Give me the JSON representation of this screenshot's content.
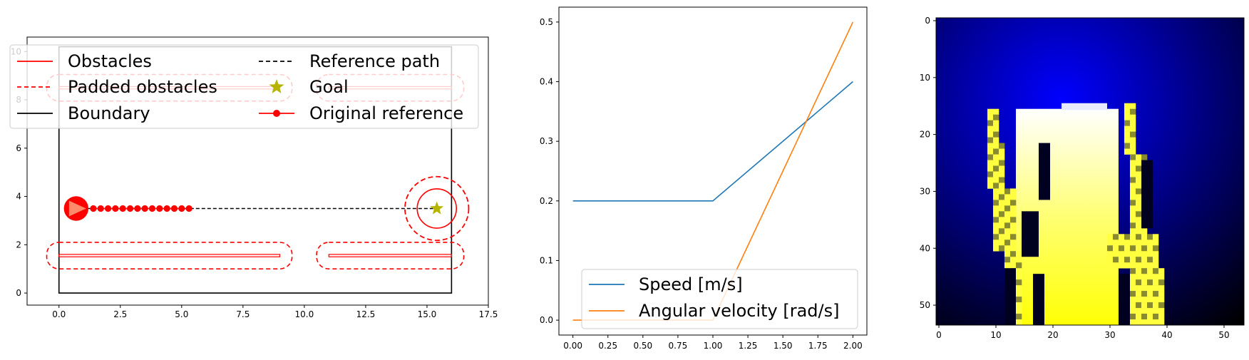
{
  "chart_data": [
    {
      "type": "line",
      "title": "",
      "xlabel": "",
      "ylabel": "",
      "xlim": [
        -1.3,
        17.5
      ],
      "ylim": [
        -0.5,
        10.6
      ],
      "xticks": [
        0.0,
        2.5,
        5.0,
        7.5,
        10.0,
        12.5,
        15.0,
        17.5
      ],
      "xtick_labels": [
        "0.0",
        "2.5",
        "5.0",
        "7.5",
        "10.0",
        "12.5",
        "15.0",
        "17.5"
      ],
      "yticks": [
        0,
        2,
        4,
        6,
        8,
        10
      ],
      "ytick_labels": [
        "0",
        "2",
        "4",
        "6",
        "8",
        "10"
      ],
      "grid": false,
      "legend_position": "top",
      "legend": [
        {
          "label": "Obstacles",
          "style": "solid",
          "color": "#ff0000"
        },
        {
          "label": "Reference path",
          "style": "dashed",
          "color": "#000000"
        },
        {
          "label": "Padded obstacles",
          "style": "dashed",
          "color": "#ff0000"
        },
        {
          "label": "Goal",
          "style": "star",
          "color": "#b5b500"
        },
        {
          "label": "Boundary",
          "style": "solid",
          "color": "#000000"
        },
        {
          "label": "Original reference",
          "style": "line-dot",
          "color": "#ff0000"
        }
      ],
      "boundary": [
        [
          0,
          0
        ],
        [
          16,
          0
        ],
        [
          16,
          10.2
        ],
        [
          0,
          10.2
        ]
      ],
      "obstacles": [
        {
          "x0": 0,
          "x1": 9,
          "y0": 1.5,
          "y1": 1.6
        },
        {
          "x0": 11,
          "x1": 16,
          "y0": 1.5,
          "y1": 1.6
        },
        {
          "x0": 0,
          "x1": 9,
          "y0": 8.45,
          "y1": 8.55
        },
        {
          "x0": 11,
          "x1": 16,
          "y0": 8.45,
          "y1": 8.55
        }
      ],
      "padding": 0.5,
      "reference_path": {
        "x": [
          0.7,
          15.4
        ],
        "y": [
          3.5,
          3.5
        ]
      },
      "original_reference": {
        "x": [
          1.4,
          1.7,
          2.0,
          2.3,
          2.6,
          2.9,
          3.2,
          3.5,
          3.8,
          4.1,
          4.4,
          4.7,
          5.0,
          5.3
        ],
        "y": [
          3.5,
          3.5,
          3.5,
          3.5,
          3.5,
          3.5,
          3.5,
          3.5,
          3.5,
          3.5,
          3.5,
          3.5,
          3.5,
          3.5
        ]
      },
      "robot": {
        "x": 0.7,
        "y": 3.5,
        "radius": 0.5
      },
      "goal": {
        "x": 15.4,
        "y": 3.5,
        "inner_radius": 0.8,
        "outer_radius": 1.3
      }
    },
    {
      "type": "line",
      "title": "",
      "xlabel": "",
      "ylabel": "",
      "xlim": [
        -0.1,
        2.1
      ],
      "ylim": [
        -0.025,
        0.525
      ],
      "xticks": [
        0.0,
        0.25,
        0.5,
        0.75,
        1.0,
        1.25,
        1.5,
        1.75,
        2.0
      ],
      "xtick_labels": [
        "0.00",
        "0.25",
        "0.50",
        "0.75",
        "1.00",
        "1.25",
        "1.50",
        "1.75",
        "2.00"
      ],
      "yticks": [
        0.0,
        0.1,
        0.2,
        0.3,
        0.4,
        0.5
      ],
      "ytick_labels": [
        "0.0",
        "0.1",
        "0.2",
        "0.3",
        "0.4",
        "0.5"
      ],
      "grid": false,
      "legend_position": "lower center",
      "x": [
        0.0,
        1.0,
        2.0
      ],
      "series": [
        {
          "name": "Speed [m/s]",
          "values": [
            0.2,
            0.2,
            0.4
          ],
          "color": "#1f77b4"
        },
        {
          "name": "Angular velocity [rad/s]",
          "values": [
            0.0,
            0.0,
            0.5
          ],
          "color": "#ff7f0e"
        }
      ]
    },
    {
      "type": "heatmap",
      "title": "",
      "xlim": [
        -0.5,
        53.5
      ],
      "ylim": [
        53.5,
        -0.5
      ],
      "xticks": [
        0,
        10,
        20,
        30,
        40,
        50
      ],
      "xtick_labels": [
        "0",
        "10",
        "20",
        "30",
        "40",
        "50"
      ],
      "yticks": [
        0,
        10,
        20,
        30,
        40,
        50
      ],
      "ytick_labels": [
        "0",
        "10",
        "20",
        "30",
        "40",
        "50"
      ],
      "colors": {
        "background_center": "#0000ff",
        "background_edge": "#000000",
        "free_space_top": "#ffffff",
        "free_space_bottom": "#ffff00"
      },
      "background_center": [
        31,
        15
      ],
      "free_space_block": {
        "x0": 14,
        "x1": 31,
        "y0": 16,
        "y1": 54
      },
      "left_arm": {
        "x0": 9,
        "x1": 14,
        "y0": 16,
        "y1": 54
      },
      "right_arm": {
        "x0": 31,
        "x1": 39,
        "y0": 15,
        "y1": 54
      }
    }
  ]
}
